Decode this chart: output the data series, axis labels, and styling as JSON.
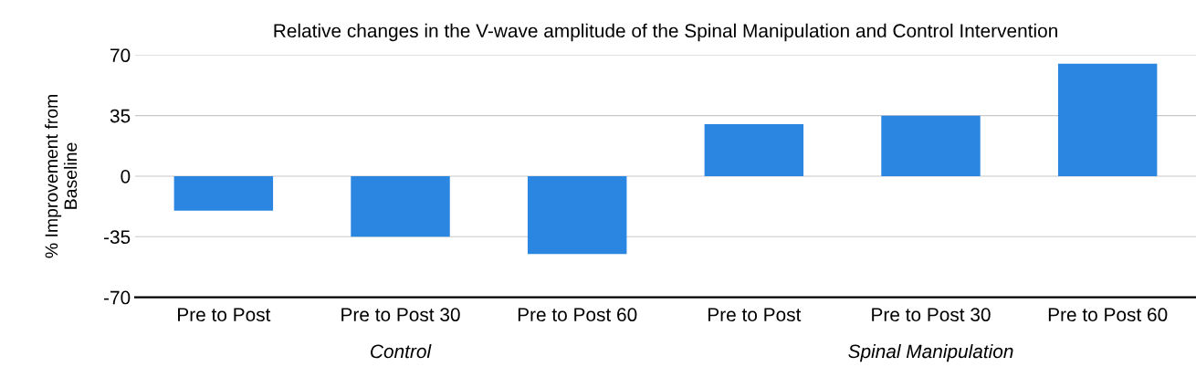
{
  "chart_data": {
    "type": "bar",
    "title": "Relative changes in the V-wave amplitude of the Spinal Manipulation and Control Intervention",
    "ylabel": "% Improvement from\nBaseline",
    "categories": [
      "Pre to Post",
      "Pre to Post 30",
      "Pre to Post 60",
      "Pre to Post",
      "Pre to Post 30",
      "Pre to Post 60"
    ],
    "values": [
      -20,
      -35,
      -45,
      30,
      35,
      65
    ],
    "color": "#2a86e0",
    "ylim": [
      -70,
      70
    ],
    "yticks": [
      -70,
      -35,
      0,
      35,
      70
    ],
    "grid": "y",
    "annotations": [
      "Control",
      "Spinal Manipulation"
    ]
  }
}
